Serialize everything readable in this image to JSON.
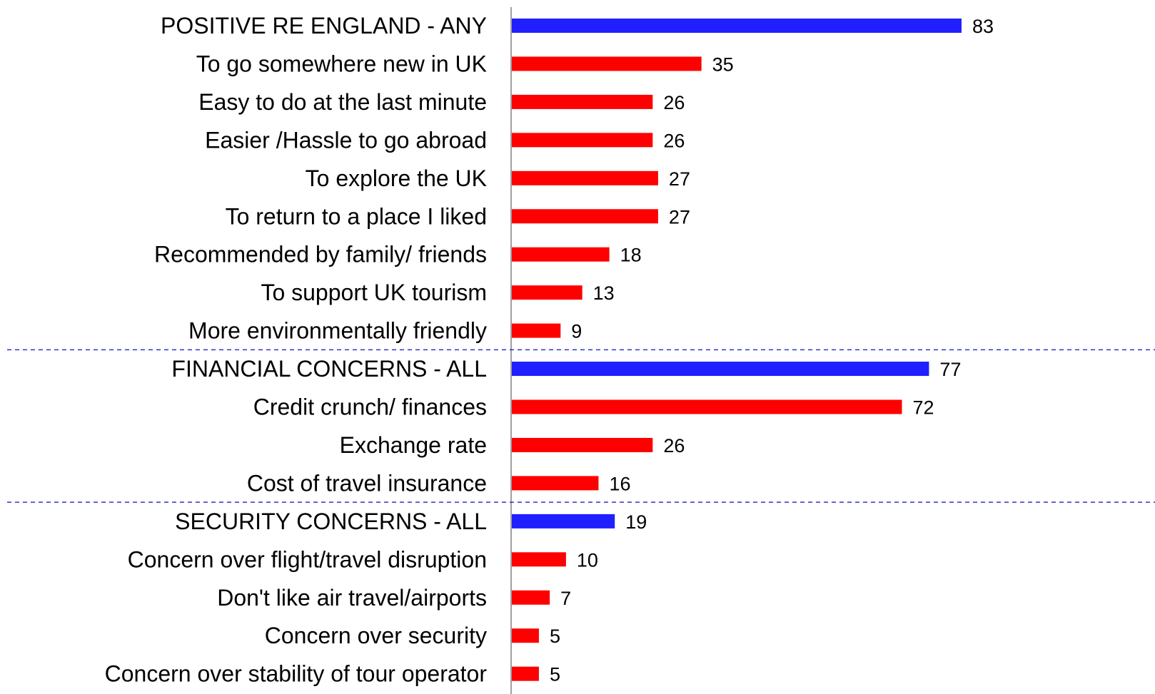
{
  "chart_data": {
    "type": "bar",
    "orientation": "horizontal",
    "categories": [
      "POSITIVE RE ENGLAND - ANY",
      "To go somewhere new in UK",
      "Easy to do at the last minute",
      "Easier /Hassle to go abroad",
      "To explore the UK",
      "To return to a place I liked",
      "Recommended by family/ friends",
      "To support UK tourism",
      "More environmentally friendly",
      "FINANCIAL CONCERNS - ALL",
      "Credit crunch/ finances",
      "Exchange rate",
      "Cost of travel insurance",
      "SECURITY CONCERNS - ALL",
      "Concern over flight/travel disruption",
      "Don't like air travel/airports",
      "Concern over security",
      "Concern over stability of tour operator"
    ],
    "values": [
      83,
      35,
      26,
      26,
      27,
      27,
      18,
      13,
      9,
      77,
      72,
      26,
      16,
      19,
      10,
      7,
      5,
      5
    ],
    "is_group_total": [
      true,
      false,
      false,
      false,
      false,
      false,
      false,
      false,
      false,
      true,
      false,
      false,
      false,
      true,
      false,
      false,
      false,
      false
    ],
    "group_separators_after_index": [
      8,
      12
    ],
    "xlim": [
      0,
      100
    ],
    "title": "",
    "xlabel": "",
    "ylabel": "",
    "grid": false,
    "legend": "none",
    "colors": {
      "group_total": "#1f1fff",
      "item": "#ff0000",
      "separator": "#3333cc",
      "axis": "#808080"
    }
  }
}
